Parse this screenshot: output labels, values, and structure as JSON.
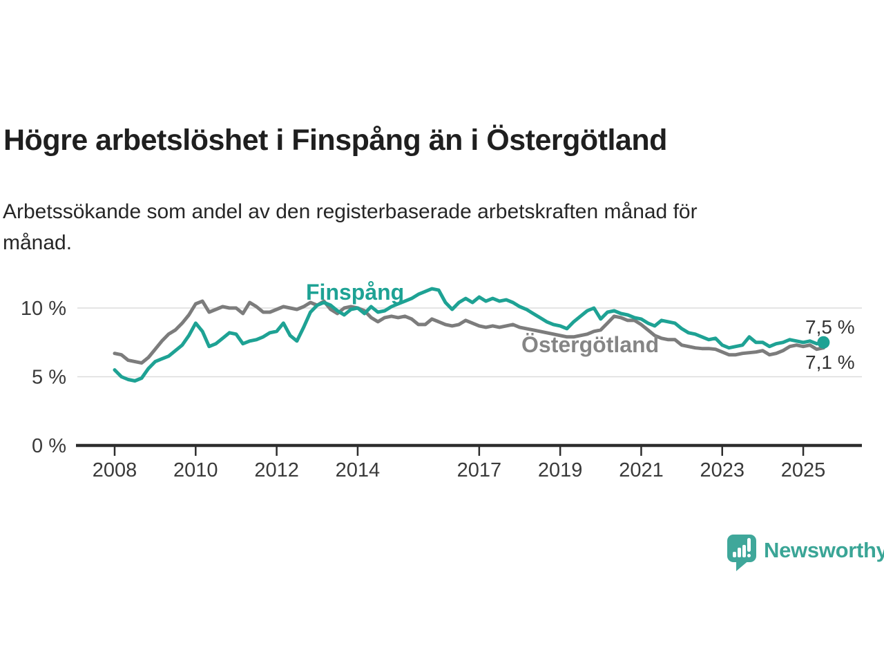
{
  "header": {
    "title": "Högre arbetslöshet i Finspång än i Östergötland",
    "subtitle_lines": [
      "Arbetssökande som andel av den registerbaserade arbetskraften månad för",
      "månad."
    ]
  },
  "chart_data": {
    "type": "line",
    "unit": "%",
    "grid": "horizontal-only",
    "x_start_year": 2008,
    "x_step_months": 2,
    "x_end": 2025.5,
    "ylim": [
      0,
      13
    ],
    "y_ticks": [
      {
        "value": 0,
        "label": "0 %"
      },
      {
        "value": 5,
        "label": "5 %"
      },
      {
        "value": 10,
        "label": "10 %"
      }
    ],
    "x_ticks": [
      {
        "year": 2008,
        "label": "2008"
      },
      {
        "year": 2010,
        "label": "2010"
      },
      {
        "year": 2012,
        "label": "2012"
      },
      {
        "year": 2014,
        "label": "2014"
      },
      {
        "year": 2017,
        "label": "2017"
      },
      {
        "year": 2019,
        "label": "2019"
      },
      {
        "year": 2021,
        "label": "2021"
      },
      {
        "year": 2023,
        "label": "2023"
      },
      {
        "year": 2025,
        "label": "2025"
      }
    ],
    "series": [
      {
        "name": "Östergötland",
        "color": "#7c7c7c",
        "end_label": "7,1 %",
        "end_dot": false,
        "values": [
          6.7,
          6.6,
          6.2,
          6.1,
          6.0,
          6.4,
          7.0,
          7.6,
          8.1,
          8.4,
          8.9,
          9.5,
          10.3,
          10.5,
          9.7,
          9.9,
          10.1,
          10.0,
          10.0,
          9.6,
          10.4,
          10.1,
          9.7,
          9.7,
          9.9,
          10.1,
          10.0,
          9.9,
          10.1,
          10.4,
          10.2,
          10.5,
          9.9,
          9.6,
          10.0,
          10.1,
          10.0,
          9.8,
          9.3,
          9.0,
          9.3,
          9.4,
          9.3,
          9.4,
          9.2,
          8.8,
          8.8,
          9.2,
          9.0,
          8.8,
          8.7,
          8.8,
          9.1,
          8.9,
          8.7,
          8.6,
          8.7,
          8.6,
          8.7,
          8.8,
          8.6,
          8.5,
          8.4,
          8.3,
          8.2,
          8.1,
          8.0,
          7.9,
          7.9,
          8.0,
          8.1,
          8.3,
          8.4,
          8.9,
          9.4,
          9.3,
          9.1,
          9.1,
          8.8,
          8.4,
          8.0,
          7.8,
          7.7,
          7.7,
          7.3,
          7.2,
          7.1,
          7.05,
          7.05,
          7.0,
          6.8,
          6.6,
          6.6,
          6.7,
          6.75,
          6.8,
          6.9,
          6.6,
          6.7,
          6.9,
          7.2,
          7.3,
          7.2,
          7.3,
          7.0,
          7.1
        ]
      },
      {
        "name": "Finspång",
        "color": "#1ea294",
        "end_label": "7,5 %",
        "end_dot": true,
        "values": [
          5.5,
          5.0,
          4.8,
          4.7,
          4.9,
          5.6,
          6.1,
          6.3,
          6.5,
          6.9,
          7.3,
          8.0,
          8.9,
          8.3,
          7.2,
          7.4,
          7.8,
          8.2,
          8.1,
          7.4,
          7.6,
          7.7,
          7.9,
          8.2,
          8.3,
          8.9,
          8.0,
          7.6,
          8.6,
          9.7,
          10.2,
          10.4,
          10.2,
          9.8,
          9.5,
          9.9,
          10.0,
          9.6,
          10.1,
          9.7,
          9.8,
          10.1,
          10.3,
          10.5,
          10.7,
          11.0,
          11.2,
          11.4,
          11.3,
          10.4,
          9.9,
          10.4,
          10.7,
          10.4,
          10.8,
          10.5,
          10.7,
          10.5,
          10.6,
          10.4,
          10.1,
          9.9,
          9.6,
          9.3,
          9.0,
          8.8,
          8.7,
          8.5,
          9.0,
          9.4,
          9.8,
          10.0,
          9.2,
          9.7,
          9.8,
          9.6,
          9.5,
          9.3,
          9.2,
          8.9,
          8.7,
          9.1,
          9.0,
          8.9,
          8.5,
          8.2,
          8.1,
          7.9,
          7.7,
          7.8,
          7.3,
          7.1,
          7.2,
          7.3,
          7.9,
          7.5,
          7.5,
          7.2,
          7.4,
          7.5,
          7.7,
          7.6,
          7.5,
          7.6,
          7.4,
          7.5
        ]
      }
    ]
  },
  "logo": {
    "text": "Newsworthy",
    "color": "#3aa596"
  }
}
